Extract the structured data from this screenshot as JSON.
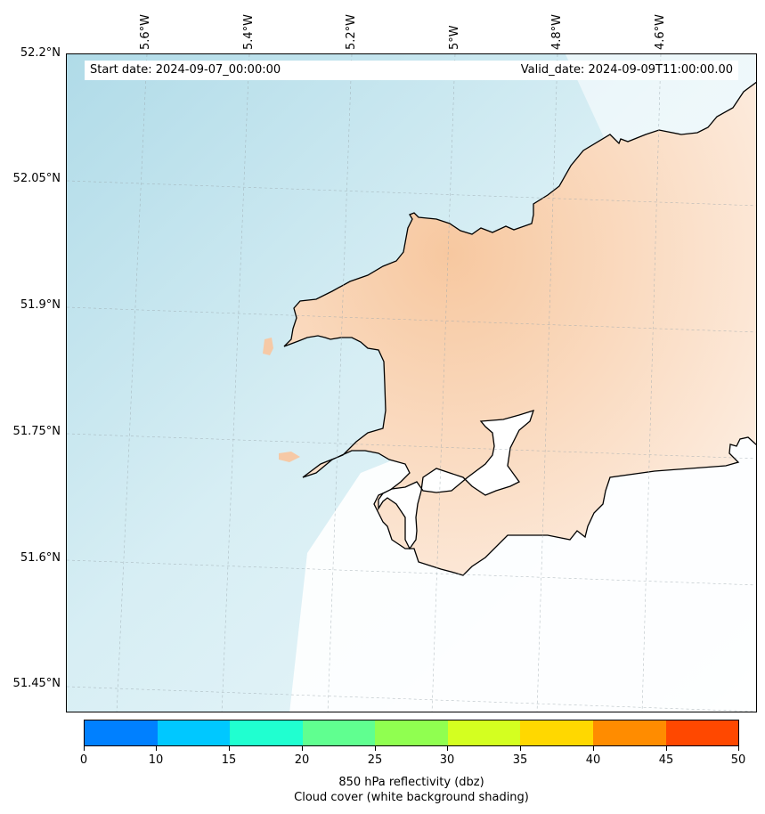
{
  "header": {
    "start_date": "Start date: 2024-09-07_00:00:00",
    "valid_date": "Valid_date: 2024-09-09T11:00:00.00"
  },
  "longitude_labels": [
    "5.6°W",
    "5.4°W",
    "5.2°W",
    "5°W",
    "4.8°W",
    "4.6°W"
  ],
  "latitude_labels": [
    "52.2°N",
    "52.05°N",
    "51.9°N",
    "51.75°N",
    "51.6°N",
    "51.45°N"
  ],
  "colorbar": {
    "ticks": [
      "0",
      "10",
      "15",
      "20",
      "25",
      "30",
      "35",
      "40",
      "45",
      "50"
    ],
    "colors": [
      "#0080ff",
      "#00c8ff",
      "#20ffd0",
      "#60ff90",
      "#90ff50",
      "#d4ff20",
      "#ffd800",
      "#ff8c00",
      "#ff4800"
    ],
    "title_line1": "850 hPa reflectivity (dbz)",
    "title_line2": "Cloud cover (white background shading)"
  },
  "map": {
    "sea_color": "#cfe9f1",
    "cloud_color": "#ffffff",
    "land_tint": "#f6c9a6",
    "coastline_color": "#000000"
  }
}
